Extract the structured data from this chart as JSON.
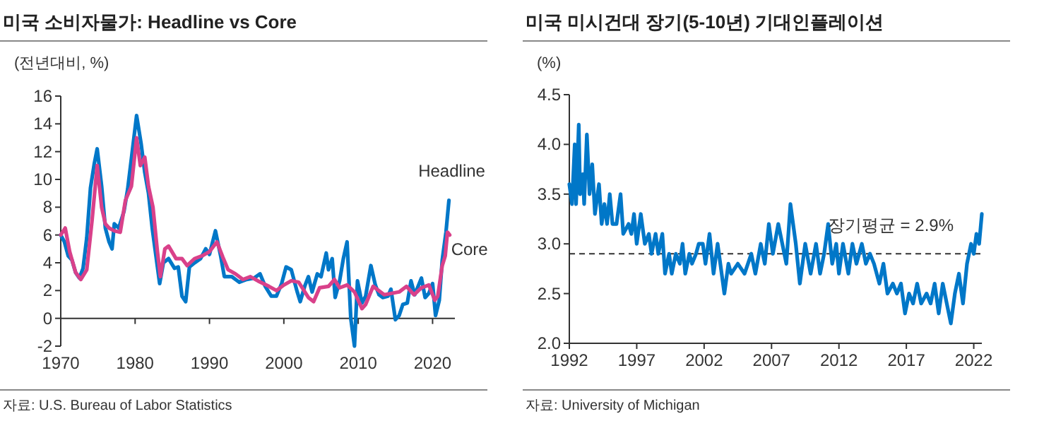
{
  "chart_data": [
    {
      "type": "line",
      "title": "미국 소비자물가: Headline vs Core",
      "ylabel": "(전년대비, %)",
      "annotations": [
        "자료: U.S. Bureau of Labor Statistics"
      ],
      "xlim": [
        1970,
        2023
      ],
      "xticks": [
        1970,
        1980,
        1990,
        2000,
        2010,
        2020
      ],
      "ylim": [
        -2,
        16
      ],
      "yticks": [
        -2,
        0,
        2,
        4,
        6,
        8,
        10,
        12,
        14,
        16
      ],
      "grid": false,
      "legend": false,
      "line_style": "solid",
      "marker": "none",
      "series": [
        {
          "name": "Headline",
          "color": "#0077c8",
          "x": [
            1970.0,
            1970.5,
            1971.0,
            1971.5,
            1972.0,
            1972.5,
            1973.0,
            1973.5,
            1974.0,
            1974.5,
            1974.9,
            1975.5,
            1976.0,
            1976.5,
            1976.9,
            1977.2,
            1977.8,
            1978.5,
            1979.0,
            1979.5,
            1980.2,
            1980.8,
            1981.3,
            1981.8,
            1982.3,
            1982.8,
            1983.3,
            1983.8,
            1984.5,
            1985.3,
            1985.8,
            1986.3,
            1986.8,
            1987.3,
            1988.0,
            1988.8,
            1989.5,
            1990.0,
            1990.8,
            1991.5,
            1992.0,
            1993.0,
            1994.0,
            1995.0,
            1996.0,
            1996.8,
            1997.5,
            1998.3,
            1999.0,
            1999.7,
            2000.3,
            2001.0,
            2001.8,
            2002.2,
            2002.8,
            2003.3,
            2003.8,
            2004.5,
            2005.0,
            2005.7,
            2006.0,
            2006.5,
            2006.9,
            2007.5,
            2008.0,
            2008.5,
            2009.0,
            2009.5,
            2009.9,
            2010.5,
            2011.0,
            2011.7,
            2012.3,
            2012.8,
            2013.3,
            2014.0,
            2014.4,
            2015.0,
            2015.5,
            2016.0,
            2016.6,
            2017.1,
            2017.6,
            2018.5,
            2019.0,
            2019.5,
            2020.0,
            2020.4,
            2020.9,
            2021.3,
            2021.8,
            2022.2
          ],
          "values": [
            6.0,
            5.5,
            4.5,
            4.2,
            3.3,
            2.9,
            3.6,
            5.8,
            9.4,
            11.1,
            12.2,
            9.5,
            6.5,
            5.5,
            5.0,
            6.8,
            6.5,
            7.7,
            9.3,
            11.5,
            14.6,
            12.6,
            10.5,
            9.0,
            6.5,
            4.5,
            2.5,
            4.0,
            4.3,
            3.6,
            3.7,
            1.6,
            1.2,
            3.7,
            4.0,
            4.3,
            5.0,
            4.6,
            6.3,
            4.5,
            3.0,
            3.0,
            2.6,
            2.8,
            2.9,
            3.2,
            2.3,
            1.6,
            1.6,
            2.5,
            3.7,
            3.5,
            1.9,
            1.2,
            2.3,
            3.0,
            1.9,
            3.2,
            3.0,
            4.7,
            3.5,
            4.3,
            1.5,
            2.7,
            4.3,
            5.5,
            0.0,
            -2.0,
            2.7,
            1.1,
            1.6,
            3.8,
            2.4,
            1.7,
            1.5,
            1.6,
            2.1,
            -0.1,
            0.2,
            1.0,
            1.1,
            2.7,
            1.7,
            2.9,
            1.5,
            1.8,
            2.5,
            0.2,
            1.3,
            4.2,
            6.2,
            8.5
          ]
        },
        {
          "name": "Core",
          "color": "#d9418a",
          "x": [
            1970.0,
            1970.6,
            1971.2,
            1972.0,
            1972.7,
            1973.5,
            1974.2,
            1974.9,
            1975.5,
            1976.0,
            1976.5,
            1977.2,
            1978.0,
            1978.7,
            1979.5,
            1980.2,
            1980.7,
            1981.3,
            1981.8,
            1982.4,
            1983.0,
            1983.4,
            1984.0,
            1984.5,
            1985.5,
            1986.3,
            1987.0,
            1988.0,
            1989.0,
            1990.0,
            1991.0,
            1991.8,
            1992.5,
            1993.5,
            1994.5,
            1995.5,
            1996.5,
            1998.0,
            1999.0,
            2000.0,
            2001.0,
            2002.0,
            2003.3,
            2004.0,
            2004.8,
            2006.0,
            2006.8,
            2007.5,
            2008.5,
            2009.5,
            2010.5,
            2011.0,
            2012.0,
            2012.5,
            2013.5,
            2014.5,
            2015.5,
            2016.5,
            2017.5,
            2018.5,
            2019.5,
            2020.3,
            2020.7,
            2021.3,
            2021.7,
            2022.0,
            2022.3
          ],
          "values": [
            6.0,
            6.5,
            4.8,
            3.3,
            2.8,
            3.5,
            7.0,
            11.0,
            8.0,
            6.8,
            6.5,
            6.3,
            6.2,
            8.5,
            9.5,
            13.0,
            11.0,
            11.6,
            9.5,
            8.0,
            4.8,
            3.0,
            5.0,
            5.2,
            4.3,
            4.3,
            3.8,
            4.3,
            4.5,
            4.8,
            5.5,
            4.4,
            3.5,
            3.2,
            2.8,
            3.0,
            2.7,
            2.3,
            2.0,
            2.4,
            2.7,
            2.6,
            1.5,
            1.2,
            2.2,
            2.3,
            2.8,
            2.2,
            2.4,
            1.9,
            0.7,
            1.0,
            2.3,
            2.1,
            1.7,
            1.8,
            1.9,
            2.3,
            1.7,
            2.2,
            2.4,
            1.3,
            1.6,
            3.8,
            4.5,
            6.2,
            6.0
          ]
        }
      ]
    },
    {
      "type": "line",
      "title": "미국 미시건대 장기(5-10년) 기대인플레이션",
      "ylabel": "(%)",
      "annotations": [
        "자료: University of Michigan"
      ],
      "xlim": [
        1992,
        2022.6
      ],
      "xticks": [
        1992,
        1997,
        2002,
        2007,
        2012,
        2017,
        2022
      ],
      "ylim": [
        2,
        4.5
      ],
      "yticks": [
        {
          "value": 2,
          "label": "2.0"
        },
        2.5,
        {
          "value": 3,
          "label": "3.0"
        },
        3.5,
        {
          "value": 4,
          "label": "4.0"
        },
        4.5
      ],
      "grid": false,
      "legend": false,
      "line_style": "solid",
      "marker": "none",
      "ref_lines": [
        {
          "axis": "y",
          "value": 2.9,
          "label": "장기평균 = 2.9%",
          "color": "#333333",
          "line_style": "dashed"
        }
      ],
      "series": [
        {
          "color": "#0077c8",
          "x": [
            1992.0,
            1992.2,
            1992.4,
            1992.5,
            1992.7,
            1992.8,
            1993.0,
            1993.1,
            1993.3,
            1993.5,
            1993.7,
            1993.9,
            1994.2,
            1994.4,
            1994.6,
            1994.8,
            1995.0,
            1995.2,
            1995.5,
            1995.8,
            1996.0,
            1996.4,
            1996.6,
            1996.8,
            1997.0,
            1997.3,
            1997.6,
            1997.9,
            1998.1,
            1998.4,
            1998.6,
            1998.9,
            1999.1,
            1999.4,
            1999.6,
            1999.9,
            2000.2,
            2000.4,
            2000.6,
            2000.9,
            2001.1,
            2001.4,
            2001.6,
            2001.9,
            2002.1,
            2002.4,
            2002.7,
            2003.0,
            2003.3,
            2003.5,
            2003.8,
            2004.0,
            2004.5,
            2005.0,
            2005.5,
            2005.8,
            2006.2,
            2006.5,
            2006.8,
            2007.1,
            2007.5,
            2007.8,
            2008.1,
            2008.4,
            2008.8,
            2009.1,
            2009.5,
            2009.9,
            2010.3,
            2010.6,
            2010.9,
            2011.2,
            2011.5,
            2011.8,
            2012.0,
            2012.3,
            2012.7,
            2013.0,
            2013.3,
            2013.7,
            2014.0,
            2014.3,
            2014.6,
            2015.0,
            2015.3,
            2015.6,
            2016.0,
            2016.3,
            2016.6,
            2016.9,
            2017.2,
            2017.5,
            2017.8,
            2018.1,
            2018.5,
            2018.8,
            2019.1,
            2019.4,
            2019.7,
            2020.0,
            2020.3,
            2020.6,
            2020.9,
            2021.2,
            2021.5,
            2021.8,
            2022.0,
            2022.2,
            2022.4,
            2022.6
          ],
          "values": [
            3.6,
            3.4,
            4.0,
            3.4,
            4.2,
            3.5,
            3.7,
            3.4,
            4.1,
            3.5,
            3.8,
            3.3,
            3.6,
            3.2,
            3.4,
            3.2,
            3.5,
            3.2,
            3.2,
            3.5,
            3.1,
            3.2,
            3.1,
            3.3,
            3.0,
            3.3,
            3.0,
            3.1,
            2.9,
            3.1,
            2.9,
            3.1,
            2.7,
            2.9,
            2.7,
            2.9,
            2.8,
            3.0,
            2.7,
            2.9,
            2.8,
            2.9,
            3.0,
            3.0,
            2.8,
            3.1,
            2.7,
            3.0,
            2.7,
            2.5,
            2.8,
            2.7,
            2.8,
            2.7,
            2.9,
            2.7,
            3.0,
            2.8,
            3.2,
            2.9,
            3.2,
            3.0,
            2.8,
            3.4,
            3.0,
            2.6,
            3.0,
            2.7,
            3.0,
            2.7,
            2.9,
            3.2,
            2.8,
            3.0,
            2.7,
            3.0,
            2.7,
            3.0,
            2.8,
            3.0,
            2.8,
            2.9,
            2.8,
            2.6,
            2.8,
            2.5,
            2.6,
            2.5,
            2.6,
            2.3,
            2.5,
            2.4,
            2.6,
            2.4,
            2.5,
            2.4,
            2.6,
            2.3,
            2.6,
            2.4,
            2.2,
            2.5,
            2.7,
            2.4,
            2.8,
            3.0,
            2.9,
            3.1,
            3.0,
            3.3
          ]
        }
      ]
    }
  ]
}
